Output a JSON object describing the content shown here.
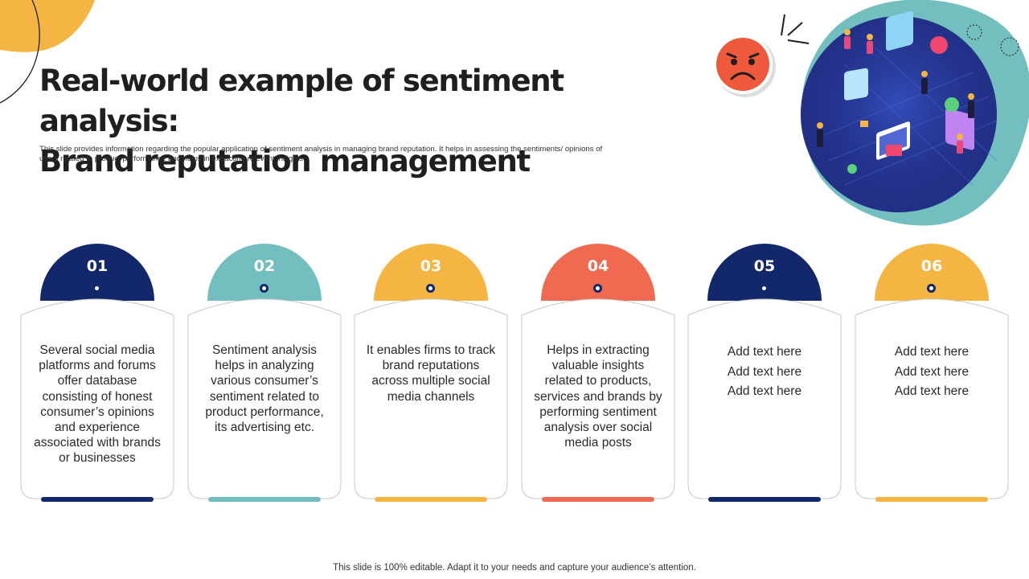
{
  "title_lines": [
    "Real-world example of sentiment analysis:",
    "Brand reputation management"
  ],
  "subtitle_lines": [
    "This slide provides information regarding the popular application of sentiment analysis in managing brand reputation. It helps in assessing the sentiments/ opinions of",
    "users related to product performance and helps in extracting relevant insights."
  ],
  "colors": {
    "navy": "#13286b",
    "teal": "#73bfc0",
    "yellow": "#f4b542",
    "coral": "#ef6a50"
  },
  "cards": [
    {
      "number": "01",
      "color": "#13286b",
      "placeholder": false,
      "text": [
        "Several social media",
        "platforms and forums",
        "offer database",
        "consisting of honest",
        "consumer’s opinions",
        "and experience",
        "associated with brands",
        "or businesses"
      ]
    },
    {
      "number": "02",
      "color": "#73bfc0",
      "placeholder": false,
      "text": [
        "Sentiment analysis",
        "helps in analyzing",
        "various consumer’s",
        "sentiment related to",
        "product performance,",
        "its advertising etc."
      ]
    },
    {
      "number": "03",
      "color": "#f4b542",
      "placeholder": false,
      "text": [
        "It enables firms to track",
        "brand reputations",
        "across multiple social",
        "media channels"
      ]
    },
    {
      "number": "04",
      "color": "#ef6a50",
      "placeholder": false,
      "text": [
        "Helps in extracting",
        "valuable insights",
        "related to products,",
        "services and brands by",
        "performing sentiment",
        "analysis over social",
        "media posts"
      ]
    },
    {
      "number": "05",
      "color": "#13286b",
      "placeholder": true,
      "text": [
        "Add text here",
        "Add text here",
        "Add text here"
      ]
    },
    {
      "number": "06",
      "color": "#f4b542",
      "placeholder": true,
      "text": [
        "Add text here",
        "Add text here",
        "Add text here"
      ]
    }
  ],
  "footer": "This slide is 100% editable. Adapt it to your needs and capture your audience’s attention.",
  "icons": [
    "sad-face-icon",
    "sparkle-lines-icon",
    "digital-marketing-illustration"
  ]
}
